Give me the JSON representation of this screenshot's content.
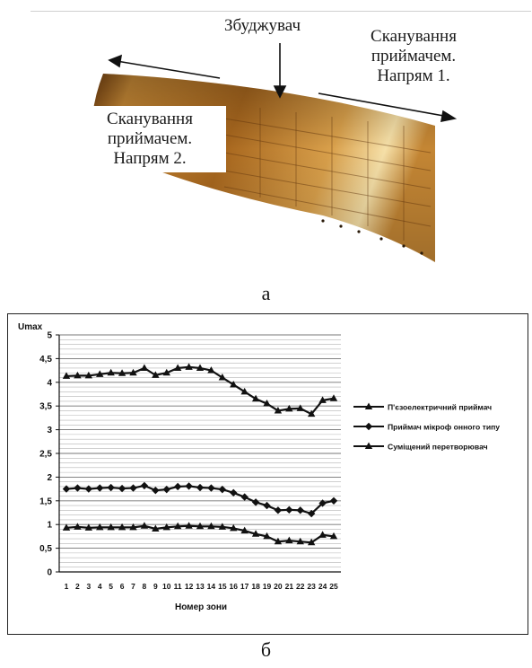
{
  "panel_a": {
    "label": "а",
    "exciter_label": "Збуджувач",
    "scan_dir1_lines": [
      "Сканування",
      "приймачем.",
      "Напрям 1."
    ],
    "scan_dir2_lines": [
      "Сканування",
      "приймачем.",
      "Напрям 2."
    ],
    "panel_color": "#b9782a"
  },
  "panel_b": {
    "label": "б"
  },
  "chart_data": {
    "type": "line",
    "ylabel": "Umax",
    "xlabel": "Номер зони",
    "ylim": [
      0,
      5
    ],
    "ytick_step": 0.5,
    "ytick_labels": [
      "0",
      "0,5",
      "1",
      "1,5",
      "2",
      "2,5",
      "3",
      "3,5",
      "4",
      "4,5",
      "5"
    ],
    "grid": "horizontal",
    "legend_position": "right",
    "categories": [
      "1",
      "2",
      "3",
      "4",
      "5",
      "6",
      "7",
      "8",
      "9",
      "10",
      "11",
      "12",
      "13",
      "14",
      "15",
      "16",
      "17",
      "18",
      "19",
      "20",
      "21",
      "22",
      "23",
      "24",
      "25"
    ],
    "series": [
      {
        "name": "П'єзоелектричний приймач",
        "marker": "triangle",
        "values": [
          4.13,
          4.14,
          4.14,
          4.17,
          4.2,
          4.19,
          4.2,
          4.3,
          4.15,
          4.2,
          4.3,
          4.32,
          4.3,
          4.25,
          4.1,
          3.95,
          3.8,
          3.65,
          3.55,
          3.4,
          3.44,
          3.45,
          3.33,
          3.62,
          3.66
        ]
      },
      {
        "name": "Приймач мікроф онного типу",
        "marker": "diamond",
        "values": [
          1.75,
          1.77,
          1.75,
          1.77,
          1.78,
          1.76,
          1.77,
          1.82,
          1.72,
          1.74,
          1.8,
          1.81,
          1.78,
          1.77,
          1.74,
          1.67,
          1.58,
          1.47,
          1.4,
          1.3,
          1.31,
          1.3,
          1.23,
          1.45,
          1.5
        ]
      },
      {
        "name": "Суміщений перетворювач",
        "marker": "triangle",
        "values": [
          0.93,
          0.95,
          0.93,
          0.94,
          0.94,
          0.94,
          0.94,
          0.97,
          0.91,
          0.94,
          0.96,
          0.97,
          0.96,
          0.96,
          0.95,
          0.92,
          0.87,
          0.8,
          0.75,
          0.64,
          0.66,
          0.64,
          0.62,
          0.78,
          0.75
        ]
      }
    ]
  }
}
